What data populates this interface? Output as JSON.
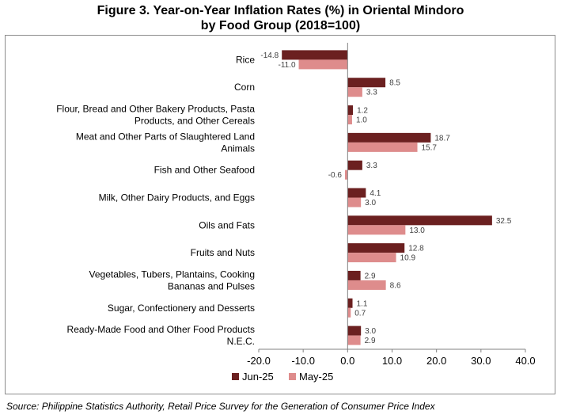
{
  "title_line1": "Figure 3. Year-on-Year Inflation Rates (%) in Oriental Mindoro",
  "title_line2": "by Food Group (2018=100)",
  "source": "Source: Philippine Statistics Authority, Retail Price Survey for the Generation of Consumer Price Index",
  "chart_data": {
    "type": "bar",
    "orientation": "horizontal",
    "title": "Figure 3. Year-on-Year Inflation Rates (%) in Oriental Mindoro by Food Group (2018=100)",
    "categories": [
      [
        "Rice"
      ],
      [
        "Corn"
      ],
      [
        "Flour, Bread and Other Bakery Products, Pasta",
        "Products, and Other Cereals"
      ],
      [
        "Meat and Other Parts of Slaughtered Land",
        "Animals"
      ],
      [
        "Fish and Other Seafood"
      ],
      [
        "Milk, Other Dairy Products, and Eggs"
      ],
      [
        "Oils and Fats"
      ],
      [
        "Fruits and Nuts"
      ],
      [
        "Vegetables, Tubers, Plantains, Cooking",
        "Bananas and Pulses"
      ],
      [
        "Sugar, Confectionery and Desserts"
      ],
      [
        "Ready-Made Food and Other Food Products",
        "N.E.C."
      ]
    ],
    "series": [
      {
        "name": "Jun-25",
        "color": "#6b2020",
        "values": [
          -14.8,
          8.5,
          1.2,
          18.7,
          3.3,
          4.1,
          32.5,
          12.8,
          2.9,
          1.1,
          3.0
        ],
        "labels": [
          "-14.8",
          "8.5",
          "1.2",
          "18.7",
          "3.3",
          "4.1",
          "32.5",
          "12.8",
          "2.9",
          "1.1",
          "3.0"
        ]
      },
      {
        "name": "May-25",
        "color": "#de8c8c",
        "values": [
          -11.0,
          3.3,
          1.0,
          15.7,
          -0.6,
          3.0,
          13.0,
          10.9,
          8.6,
          0.7,
          2.9
        ],
        "labels": [
          "-11.0",
          "3.3",
          "1.0",
          "15.7",
          "-0.6",
          "3.0",
          "13.0",
          "10.9",
          "8.6",
          "0.7",
          "2.9"
        ]
      }
    ],
    "xlim": [
      -20,
      40
    ],
    "xticks": [
      -20,
      -10,
      0,
      10,
      20,
      30,
      40
    ],
    "xtick_labels": [
      "-20.0",
      "-10.0",
      "0.0",
      "10.0",
      "20.0",
      "30.0",
      "40.0"
    ],
    "grid": false,
    "legend_position": "bottom-left"
  }
}
